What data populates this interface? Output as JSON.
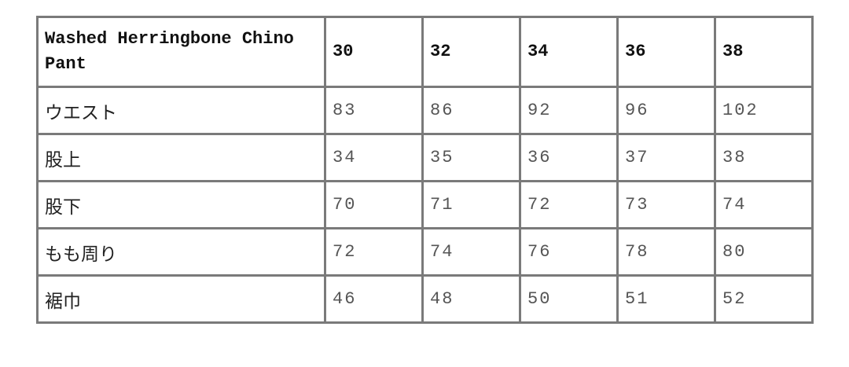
{
  "table": {
    "title": "Washed Herringbone Chino Pant",
    "sizes": [
      "30",
      "32",
      "34",
      "36",
      "38"
    ],
    "rows": [
      {
        "label": "ウエスト",
        "values": [
          "83",
          "86",
          "92",
          "96",
          "102"
        ]
      },
      {
        "label": "股上",
        "values": [
          "34",
          "35",
          "36",
          "37",
          "38"
        ]
      },
      {
        "label": "股下",
        "values": [
          "70",
          "71",
          "72",
          "73",
          "74"
        ]
      },
      {
        "label": "もも周り",
        "values": [
          "72",
          "74",
          "76",
          "78",
          "80"
        ]
      },
      {
        "label": "裾巾",
        "values": [
          "46",
          "48",
          "50",
          "51",
          "52"
        ]
      }
    ]
  }
}
